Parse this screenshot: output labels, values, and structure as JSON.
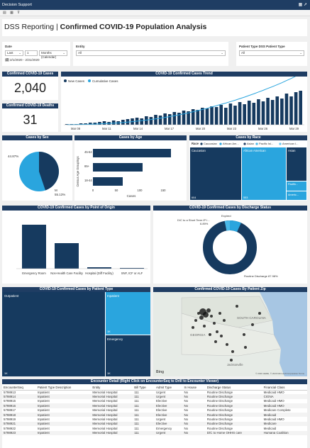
{
  "app": {
    "name": "Decision Support"
  },
  "toolbar": {
    "items": [
      "File",
      "View",
      "Filter"
    ]
  },
  "report": {
    "title_prefix": "DSS Reporting | ",
    "title_main": "Confirmed COVID-19 Population Analysis"
  },
  "filters": {
    "date": {
      "label": "Date",
      "mode": "Last",
      "count": "1",
      "unit": "Months (Calendar)",
      "range": "2/1/2020 - 2/31/2020"
    },
    "entity": {
      "label": "Entity",
      "value": "All"
    },
    "patient_type": {
      "label": "Patient Type DSS Patient Type",
      "value": "All"
    }
  },
  "kpis": {
    "cases": {
      "label": "Confirmed COVID-19 Cases",
      "value": "2,040"
    },
    "deaths": {
      "label": "Confirmed COVID-19 Deaths",
      "value": "31"
    }
  },
  "trend": {
    "title": "COVID-19 Confirmed Cases Trend",
    "legend": [
      "New Cases",
      "Cumulative Cases"
    ],
    "x_ticks": [
      "Mar 08",
      "Mar 11",
      "Mar 14",
      "Mar 17",
      "Mar 20",
      "Mar 23",
      "Mar 26",
      "Mar 29"
    ]
  },
  "sex": {
    "title": "Cases by Sex",
    "labels": [
      "44.87%",
      "55.13%"
    ],
    "minor_label": "M"
  },
  "age": {
    "title": "Cases by Age",
    "ylabel": "Census Age Groupings",
    "xlabel": "Cases",
    "categories": [
      "45-64",
      "65+",
      "18-44"
    ],
    "x_ticks": [
      "0",
      "50",
      "100",
      "150"
    ]
  },
  "race": {
    "title": "Cases by Race",
    "legend_label": "Race",
    "legend": [
      "Caucasian",
      "African Am...",
      "Asian",
      "Pacific Isl...",
      "American I..."
    ],
    "labels": [
      "Caucasian",
      "African American",
      "Asian",
      "Pacific...",
      "Americ..."
    ],
    "counts": [
      "604",
      "553",
      "",
      "",
      ""
    ]
  },
  "origin": {
    "title": "COVID-19 Confirmed Cases by Point of Origin",
    "categories": [
      "Emergency Room",
      "Non-Health Care Facility",
      "Hospital (Diff Facility)",
      "SNF, ICF or ALF"
    ]
  },
  "discharge": {
    "title": "COVID-19 Confirmed Cases by Discharge Status",
    "labels": [
      "Expired",
      "D/C to a Short Term IP I...",
      "6.89%",
      "Routine Discharge 87.98%"
    ]
  },
  "ptype": {
    "title": "COVID-19 Confirmed Cases by Patient Type",
    "labels": [
      "Outpatient",
      "Inpatient",
      "Emergency"
    ],
    "counts": [
      "1K",
      "1K",
      "1K"
    ]
  },
  "zip": {
    "title": "Confirmed COVID-19 Cases By Patient Zip",
    "places": [
      "SOUTH CAROLINA",
      "GEORGIA",
      "Jacksonville"
    ],
    "bing": "Bing",
    "copyright": "© 2020 HERE, © 2020 Microsoft Corporation Terms"
  },
  "detail": {
    "title": "Encounter Detail (Right Click on EncounterSeq to Drill to Encounter Viewer)",
    "columns": [
      "EncounterSeq",
      "Patient Type Description",
      "Entity",
      "Bill Type",
      "Admit Type",
      "In House",
      "Discharge Status",
      "Financial Class"
    ],
    "rows": [
      [
        "5798913",
        "Inpatient",
        "Memorial Hospital",
        "111",
        "Urgent",
        "No",
        "Routine Discharge",
        "Medicaid HMO"
      ],
      [
        "5798914",
        "Inpatient",
        "Memorial Hospital",
        "111",
        "Urgent",
        "No",
        "Routine Discharge",
        "CIGNA"
      ],
      [
        "5798915",
        "Inpatient",
        "Memorial Hospital",
        "111",
        "Elective",
        "No",
        "Routine Discharge",
        "Medicaid HMO"
      ],
      [
        "5798916",
        "Inpatient",
        "Memorial Hospital",
        "111",
        "Elective",
        "No",
        "Routine Discharge",
        "Medicaid HMO"
      ],
      [
        "5798917",
        "Inpatient",
        "Memorial Hospital",
        "111",
        "Elective",
        "No",
        "Routine Discharge",
        "Medicare Complete"
      ],
      [
        "5798918",
        "Inpatient",
        "Memorial Hospital",
        "111",
        "Elective",
        "No",
        "Routine Discharge",
        "Medicaid"
      ],
      [
        "5798919",
        "Inpatient",
        "Memorial Hospital",
        "111",
        "Urgent",
        "No",
        "Routine Discharge",
        "Medicaid HMO"
      ],
      [
        "5798921",
        "Inpatient",
        "Memorial Hospital",
        "111",
        "Elective",
        "No",
        "Routine Discharge",
        "Medicare"
      ],
      [
        "5798922",
        "Inpatient",
        "Memorial Hospital",
        "111",
        "Emergency",
        "No",
        "Routine Discharge",
        "Medicaid"
      ],
      [
        "5798923",
        "Inpatient",
        "Memorial Hospital",
        "111",
        "Urgent",
        "No",
        "D/C to Home OHHS care",
        "Humana Coalition"
      ]
    ]
  },
  "colors": {
    "navy": "#1f3d63",
    "dark": "#163a5f",
    "light": "#2aa5de",
    "mid": "#1a8dc9"
  }
}
